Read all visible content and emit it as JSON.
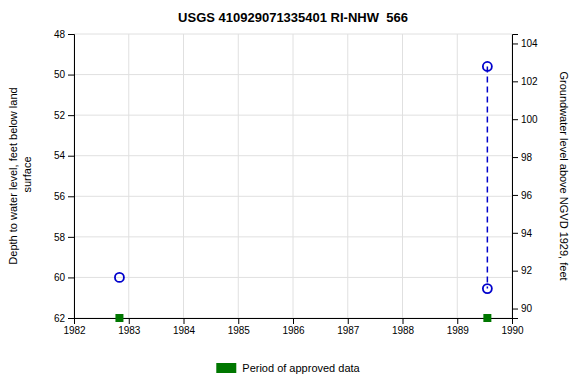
{
  "chart_data": {
    "type": "scatter",
    "title": "USGS 410929071335401 RI-NHW  566",
    "ylabel": "Depth to water level, feet below land\n surface",
    "y2label": "Groundwater level above NGVD 1929, feet",
    "xlim": [
      1982,
      1990
    ],
    "ylim": [
      62,
      48
    ],
    "y2lim": [
      89.5,
      104.5
    ],
    "xticks": [
      1982,
      1983,
      1984,
      1985,
      1986,
      1987,
      1988,
      1989,
      1990
    ],
    "yticks": [
      48,
      50,
      52,
      54,
      56,
      58,
      60,
      62
    ],
    "y2ticks": [
      90,
      92,
      94,
      96,
      98,
      100,
      102,
      104
    ],
    "grid": true,
    "legend": "bottom",
    "series": [
      {
        "type": "line",
        "line_style": "dashed",
        "color": "#0000cc",
        "x": [
          1989.55,
          1989.55
        ],
        "values": [
          49.6,
          60.55
        ]
      },
      {
        "type": "scatter",
        "marker": "circle",
        "color": "#0000cc",
        "x": [
          1982.83,
          1989.55,
          1989.55
        ],
        "values": [
          60.0,
          49.6,
          60.55
        ]
      },
      {
        "type": "scatter",
        "marker": "square",
        "color": "#007700",
        "name": "Period of approved data",
        "x": [
          1982.83,
          1989.55
        ],
        "values": [
          62,
          62
        ]
      }
    ]
  }
}
